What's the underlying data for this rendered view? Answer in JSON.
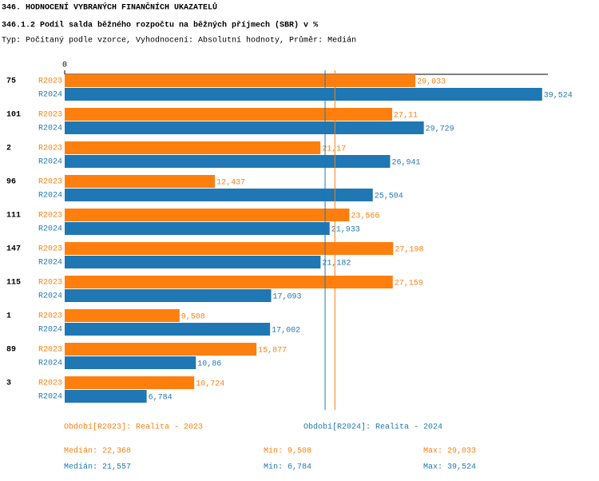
{
  "chart_data": {
    "type": "bar",
    "orientation": "horizontal",
    "title": "346. HODNOCENÍ VYBRANÝCH FINANČNÍCH UKAZATELŮ",
    "subtitle": "346.1.2 Podíl salda běžného rozpočtu na běžných příjmech (SBR) v %",
    "note": "Typ: Počítaný podle vzorce, Vyhodnocení: Absolutní hodnoty, Průměr: Medián",
    "categories": [
      "75",
      "101",
      "2",
      "96",
      "111",
      "147",
      "115",
      "1",
      "89",
      "3"
    ],
    "xlim": [
      0,
      40
    ],
    "xticks": [
      0
    ],
    "stat_names": {
      "median": "Medián:",
      "min": "Min:",
      "max": "Max:"
    },
    "series": [
      {
        "name": "R2023",
        "color": "#ff7f0e",
        "legend": "Období[R2023]: Realita - 2023",
        "values": [
          29.033,
          27.11,
          21.17,
          12.437,
          23.566,
          27.198,
          27.159,
          9.508,
          15.877,
          10.724
        ],
        "value_labels": [
          "29,033",
          "27,11",
          "21,17",
          "12,437",
          "23,566",
          "27,198",
          "27,159",
          "9,508",
          "15,877",
          "10,724"
        ],
        "median": {
          "value": 22.368,
          "label": "22,368"
        },
        "min": {
          "value": 9.508,
          "label": "9,508"
        },
        "max": {
          "value": 29.033,
          "label": "29,033"
        }
      },
      {
        "name": "R2024",
        "color": "#1f77b4",
        "legend": "Období[R2024]: Realita - 2024",
        "values": [
          39.524,
          29.729,
          26.941,
          25.504,
          21.933,
          21.182,
          17.093,
          17.002,
          10.86,
          6.784
        ],
        "value_labels": [
          "39,524",
          "29,729",
          "26,941",
          "25,504",
          "21,933",
          "21,182",
          "17,093",
          "17,002",
          "10,86",
          "6,784"
        ],
        "median": {
          "value": 21.557,
          "label": "21,557"
        },
        "min": {
          "value": 6.784,
          "label": "6,784"
        },
        "max": {
          "value": 39.524,
          "label": "39,524"
        }
      }
    ]
  }
}
